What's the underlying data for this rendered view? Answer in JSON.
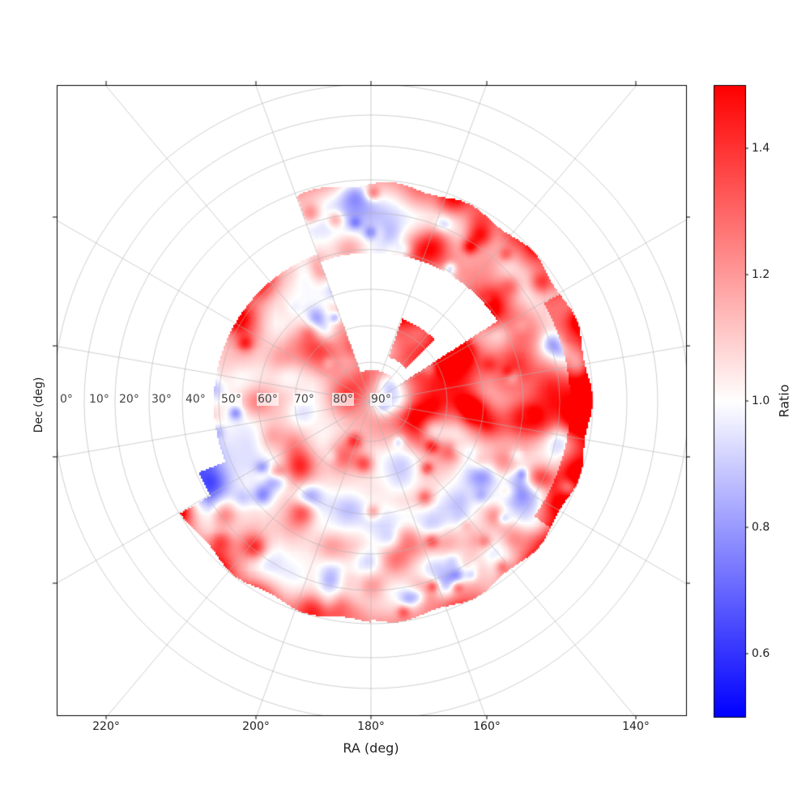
{
  "chart_data": {
    "type": "heatmap",
    "projection": "polar (north celestial pole at center)",
    "xlabel": "RA (deg)",
    "ylabel": "Dec (deg)",
    "ra_ticks": [
      "220°",
      "200°",
      "180°",
      "160°",
      "140°"
    ],
    "ra_tick_values": [
      220,
      200,
      180,
      160,
      140
    ],
    "dec_ticks": [
      "0°",
      "10°",
      "20°",
      "30°",
      "40°",
      "50°",
      "60°",
      "70°",
      "80°",
      "90°"
    ],
    "dec_tick_values": [
      0,
      10,
      20,
      30,
      40,
      50,
      60,
      70,
      80,
      90
    ],
    "meridian_spacing_deg": 20,
    "grid": true,
    "colorbar": {
      "label": "Ratio",
      "colormap": "bwr",
      "range": [
        0.5,
        1.5
      ],
      "ticks": [
        "0.6",
        "0.8",
        "1.0",
        "1.2",
        "1.4"
      ],
      "tick_values": [
        0.6,
        0.8,
        1.0,
        1.2,
        1.4
      ],
      "colors": {
        "low": "#0000ff",
        "mid": "#ffffff",
        "high": "#ff0000"
      }
    },
    "data_extent_dec_min": 32
  }
}
